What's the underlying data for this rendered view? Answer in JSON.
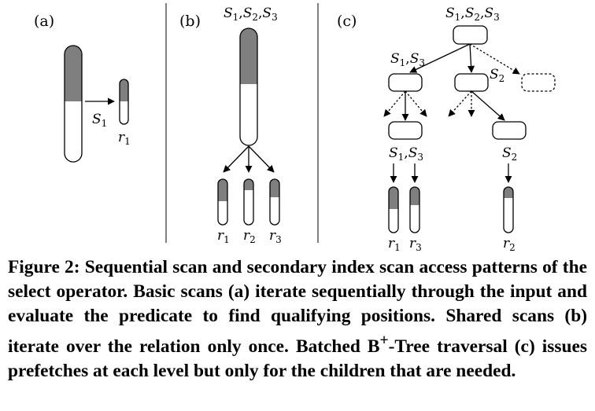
{
  "panel_a": {
    "label": "(a)",
    "scan_label": "S",
    "scan_sub": "1",
    "result_label": "r",
    "result_sub": "1"
  },
  "panel_b": {
    "label": "(b)",
    "shared_scans": [
      {
        "s": "S",
        "sub": "1",
        "sep": ","
      },
      {
        "s": "S",
        "sub": "2",
        "sep": ","
      },
      {
        "s": "S",
        "sub": "3",
        "sep": ""
      }
    ],
    "results": [
      {
        "r": "r",
        "sub": "1"
      },
      {
        "r": "r",
        "sub": "2"
      },
      {
        "r": "r",
        "sub": "3"
      }
    ]
  },
  "panel_c": {
    "label": "(c)",
    "root_scans": [
      {
        "s": "S",
        "sub": "1",
        "sep": ","
      },
      {
        "s": "S",
        "sub": "2",
        "sep": ","
      },
      {
        "s": "S",
        "sub": "3",
        "sep": ""
      }
    ],
    "left_scans": [
      {
        "s": "S",
        "sub": "1",
        "sep": ","
      },
      {
        "s": "S",
        "sub": "3",
        "sep": ""
      }
    ],
    "mid_scan": {
      "s": "S",
      "sub": "2"
    },
    "leaf_left_scans": [
      {
        "s": "S",
        "sub": "1",
        "sep": ","
      },
      {
        "s": "S",
        "sub": "3",
        "sep": ""
      }
    ],
    "leaf_right_scan": {
      "s": "S",
      "sub": "2"
    },
    "results": [
      {
        "r": "r",
        "sub": "1"
      },
      {
        "r": "r",
        "sub": "3"
      },
      {
        "r": "r",
        "sub": "2"
      }
    ]
  },
  "caption": {
    "prefix": "Figure 2:",
    "before_sup": " Sequential scan and secondary index scan access patterns of the select operator. Basic scans (a) iterate sequentially through the input and evaluate the predicate to find qualifying positions. Shared scans (b) iterate over the relation only once. Batched B",
    "sup": "+",
    "after_sup": "-Tree traversal (c) issues prefetches at each level but only for the children that are needed."
  }
}
